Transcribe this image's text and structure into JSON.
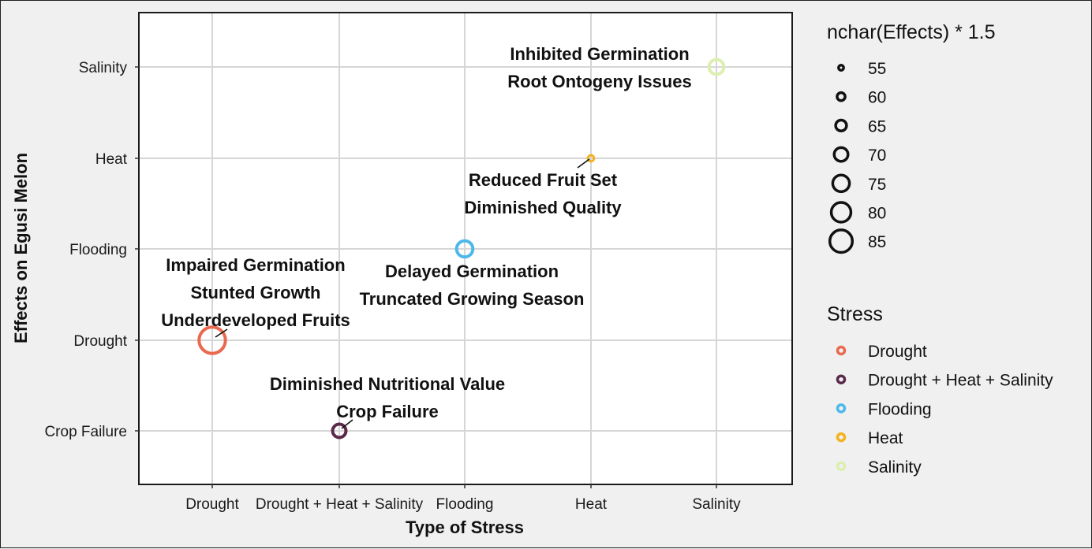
{
  "chart_data": {
    "type": "scatter",
    "title": "",
    "xlabel": "Type of Stress",
    "ylabel": "Effects on Egusi Melon",
    "x_categories": [
      "Drought",
      "Drought + Heat + Salinity",
      "Flooding",
      "Heat",
      "Salinity"
    ],
    "y_categories": [
      "Crop Failure",
      "Drought",
      "Flooding",
      "Heat",
      "Salinity"
    ],
    "grid": true,
    "points": [
      {
        "x": "Drought",
        "y": "Drought",
        "stress": "Drought",
        "size": 82,
        "label": [
          "Impaired Germination",
          "Stunted Growth",
          "Underdeveloped Fruits"
        ]
      },
      {
        "x": "Drought + Heat + Salinity",
        "y": "Crop Failure",
        "stress": "Drought + Heat + Salinity",
        "size": 64,
        "label": [
          "Diminished Nutritional Value",
          "Crop Failure"
        ]
      },
      {
        "x": "Flooding",
        "y": "Flooding",
        "stress": "Flooding",
        "size": 68,
        "label": [
          "Delayed Germination",
          "Truncated Growing Season"
        ]
      },
      {
        "x": "Heat",
        "y": "Heat",
        "stress": "Heat",
        "size": 54,
        "label": [
          "Reduced Fruit Set",
          "Diminished Quality"
        ]
      },
      {
        "x": "Salinity",
        "y": "Salinity",
        "stress": "Salinity",
        "size": 66,
        "label": [
          "Inhibited Germination",
          "Root Ontogeny Issues"
        ]
      }
    ],
    "legend_size": {
      "title": "nchar(Effects) * 1.5",
      "values": [
        55,
        60,
        65,
        70,
        75,
        80,
        85
      ]
    },
    "legend_color": {
      "title": "Stress",
      "entries": [
        {
          "name": "Drought",
          "color": "#e8694f"
        },
        {
          "name": "Drought + Heat + Salinity",
          "color": "#5b2a4a"
        },
        {
          "name": "Flooding",
          "color": "#4db8ea"
        },
        {
          "name": "Heat",
          "color": "#f3b21f"
        },
        {
          "name": "Salinity",
          "color": "#dcefb0"
        }
      ]
    },
    "legend_placement": "right"
  }
}
